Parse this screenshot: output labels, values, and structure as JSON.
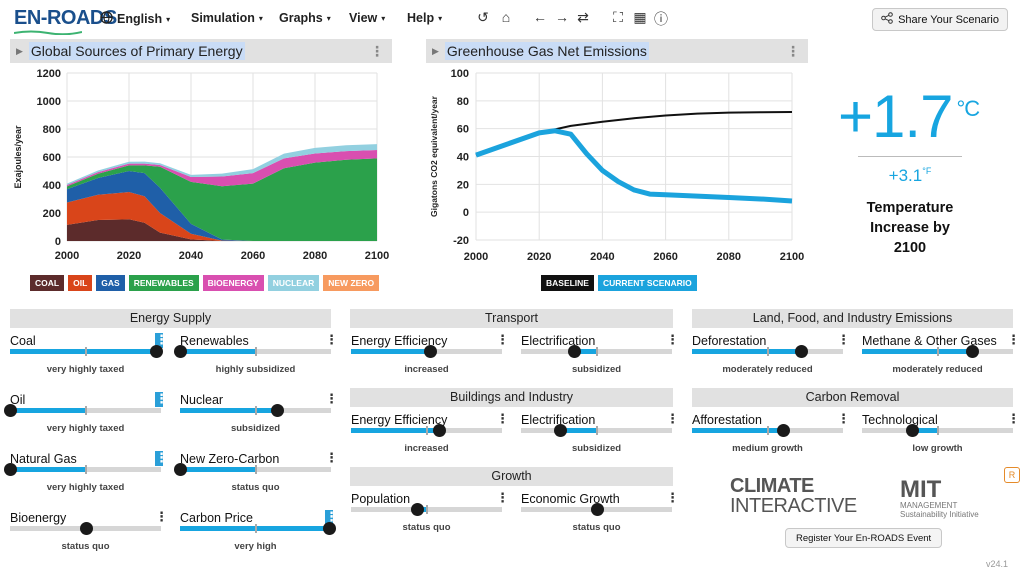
{
  "app": {
    "logo": "EN-ROADS"
  },
  "menu": [
    {
      "label": "English",
      "icon": "globe-icon"
    },
    {
      "label": "Simulation"
    },
    {
      "label": "Graphs"
    },
    {
      "label": "View"
    },
    {
      "label": "Help"
    }
  ],
  "toolbar_icons": [
    "undo-icon",
    "home-icon",
    "back-arrow-icon",
    "forward-arrow-icon",
    "swap-icon",
    "fullscreen-icon",
    "table-icon",
    "info-icon"
  ],
  "share_label": "Share Your Scenario",
  "graph1": {
    "title": "Global Sources of Primary Energy",
    "legend": [
      {
        "label": "COAL",
        "color": "#5c2b2b"
      },
      {
        "label": "OIL",
        "color": "#d9451a"
      },
      {
        "label": "GAS",
        "color": "#1f5fa8"
      },
      {
        "label": "RENEWABLES",
        "color": "#2ba14b"
      },
      {
        "label": "BIOENERGY",
        "color": "#d94fb0"
      },
      {
        "label": "NUCLEAR",
        "color": "#92d0e0"
      },
      {
        "label": "NEW ZERO",
        "color": "#f79a5f"
      }
    ]
  },
  "graph2": {
    "title": "Greenhouse Gas Net Emissions",
    "legend": [
      {
        "label": "BASELINE",
        "color": "#111111"
      },
      {
        "label": "CURRENT SCENARIO",
        "color": "#1ba3dd"
      }
    ]
  },
  "chart_data": [
    {
      "type": "area",
      "title": "Global Sources of Primary Energy",
      "ylabel": "Exajoules/year",
      "xlabel": "",
      "x": [
        2000,
        2010,
        2020,
        2025,
        2030,
        2040,
        2050,
        2060,
        2070,
        2080,
        2090,
        2100
      ],
      "xticks": [
        "2000",
        "2020",
        "2040",
        "2060",
        "2080",
        "2100"
      ],
      "yticks": [
        "0",
        "200",
        "400",
        "600",
        "800",
        "1000",
        "1200"
      ],
      "xlim": [
        2000,
        2100
      ],
      "ylim": [
        0,
        1200
      ],
      "series": [
        {
          "name": "COAL",
          "values": [
            115,
            150,
            155,
            130,
            60,
            12,
            0,
            0,
            0,
            0,
            0,
            0
          ]
        },
        {
          "name": "OIL",
          "values": [
            160,
            180,
            195,
            190,
            140,
            40,
            3,
            0,
            0,
            0,
            0,
            0
          ]
        },
        {
          "name": "GAS",
          "values": [
            95,
            120,
            150,
            165,
            180,
            70,
            8,
            0,
            0,
            0,
            0,
            0
          ]
        },
        {
          "name": "RENEWABLES",
          "values": [
            20,
            30,
            40,
            55,
            150,
            300,
            380,
            410,
            520,
            560,
            580,
            590
          ]
        },
        {
          "name": "BIOENERGY",
          "values": [
            10,
            12,
            13,
            13,
            13,
            35,
            70,
            75,
            70,
            65,
            62,
            60
          ]
        },
        {
          "name": "NUCLEAR",
          "values": [
            10,
            12,
            13,
            14,
            12,
            15,
            20,
            28,
            34,
            40,
            42,
            42
          ]
        },
        {
          "name": "NEW ZERO",
          "values": [
            0,
            0,
            0,
            0,
            0,
            0,
            0,
            0,
            0,
            0,
            0,
            0
          ]
        }
      ]
    },
    {
      "type": "line",
      "title": "Greenhouse Gas Net Emissions",
      "ylabel": "Gigatons CO2 equivalent/year",
      "xticks": [
        "2000",
        "2020",
        "2040",
        "2060",
        "2080",
        "2100"
      ],
      "yticks": [
        "-20",
        "0",
        "20",
        "40",
        "60",
        "80",
        "100"
      ],
      "xlim": [
        2000,
        2100
      ],
      "ylim": [
        -20,
        100
      ],
      "series": [
        {
          "name": "BASELINE",
          "x": [
            2000,
            2010,
            2020,
            2030,
            2040,
            2050,
            2060,
            2070,
            2080,
            2090,
            2100
          ],
          "values": [
            41,
            49,
            57,
            62,
            65,
            67.5,
            69.5,
            70.8,
            71.5,
            71.8,
            72
          ]
        },
        {
          "name": "CURRENT SCENARIO",
          "x": [
            2000,
            2010,
            2020,
            2025,
            2030,
            2035,
            2040,
            2045,
            2050,
            2055,
            2060,
            2070,
            2080,
            2090,
            2100
          ],
          "values": [
            41,
            49,
            57,
            58.5,
            56,
            42,
            30,
            22,
            16,
            13,
            12.5,
            11.5,
            10.5,
            9.5,
            8
          ]
        }
      ]
    }
  ],
  "temperature": {
    "celsius": "+1.7",
    "c_unit": "°C",
    "fahrenheit": "+3.1",
    "f_unit": "°F",
    "label": "Temperature Increase by 2100"
  },
  "sections": {
    "energy_supply": "Energy Supply",
    "transport": "Transport",
    "buildings": "Buildings and Industry",
    "growth": "Growth",
    "land": "Land, Food, and Industry Emissions",
    "removal": "Carbon Removal"
  },
  "sliders": {
    "coal": {
      "name": "Coal",
      "status": "very highly taxed",
      "value": 0.97,
      "highlight": true
    },
    "renewables": {
      "name": "Renewables",
      "status": "highly subsidized",
      "value": 0.0,
      "highlight": false
    },
    "oil": {
      "name": "Oil",
      "status": "very highly taxed",
      "value": 0.0,
      "highlight": true
    },
    "nuclear": {
      "name": "Nuclear",
      "status": "subsidized",
      "value": 0.64,
      "highlight": false
    },
    "natural_gas": {
      "name": "Natural Gas",
      "status": "very highly taxed",
      "value": 0.0,
      "highlight": true
    },
    "new_zero": {
      "name": "New Zero-Carbon",
      "status": "status quo",
      "value": 0.0,
      "highlight": false
    },
    "bioenergy": {
      "name": "Bioenergy",
      "status": "status quo",
      "value": 0.5,
      "highlight": false
    },
    "carbon_price": {
      "name": "Carbon Price",
      "status": "very high",
      "value": 0.99,
      "highlight": true
    },
    "transport_eff": {
      "name": "Energy Efficiency",
      "status": "increased",
      "value": 0.52,
      "highlight": false
    },
    "transport_elec": {
      "name": "Electrification",
      "status": "subsidized",
      "value": 0.35,
      "highlight": false
    },
    "building_eff": {
      "name": "Energy Efficiency",
      "status": "increased",
      "value": 0.58,
      "highlight": false
    },
    "building_elec": {
      "name": "Electrification",
      "status": "subsidized",
      "value": 0.26,
      "highlight": false
    },
    "population": {
      "name": "Population",
      "status": "status quo",
      "value": 0.44,
      "highlight": false
    },
    "econ_growth": {
      "name": "Economic Growth",
      "status": "status quo",
      "value": 0.5,
      "highlight": false
    },
    "deforestation": {
      "name": "Deforestation",
      "status": "moderately reduced",
      "value": 0.72,
      "highlight": false
    },
    "methane": {
      "name": "Methane & Other Gases",
      "status": "moderately reduced",
      "value": 0.73,
      "highlight": false
    },
    "afforestation": {
      "name": "Afforestation",
      "status": "medium growth",
      "value": 0.6,
      "highlight": false
    },
    "technological": {
      "name": "Technological",
      "status": "low growth",
      "value": 0.33,
      "highlight": false
    }
  },
  "logos": {
    "climate_line1": "CLIMATE",
    "climate_line2": "INTERACTIVE",
    "mit": "MIT",
    "mit_sub1": "MANAGEMENT",
    "mit_sub2": "Sustainability Initiative"
  },
  "register_label": "Register Your En-ROADS Event",
  "version": "v24.1",
  "colors": {
    "accent": "#17a5e0",
    "header_bg": "#e1e1e1",
    "title_highlight": "#c9dcf6"
  }
}
